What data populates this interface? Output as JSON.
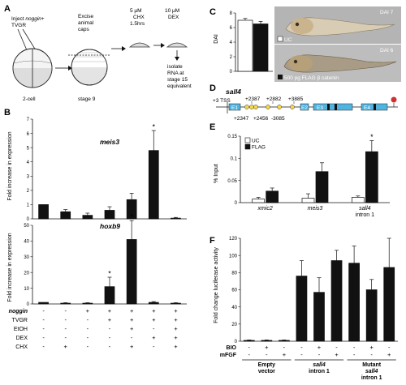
{
  "panels": {
    "A": {
      "letter": "A",
      "inject_line1": "Inject",
      "inject_gene": "noggin",
      "inject_plus": "+",
      "inject_line2": "TVGR",
      "two_cell": "2-cell",
      "excise_1": "Excise",
      "excise_2": "animal",
      "excise_3": "caps",
      "stage9": "stage 9",
      "chx_1": "5 μM",
      "chx_2": "CHX",
      "chx_3": "1.5hrs",
      "dex_1": "10 μM",
      "dex_2": "DEX",
      "iso_1": "isolate",
      "iso_2": "RNA at",
      "iso_3": "stage 15",
      "iso_4": "equivalent"
    },
    "B": {
      "letter": "B",
      "row_labels": [
        "noggin",
        "TVGR",
        "EtOH",
        "DEX",
        "CHX"
      ],
      "row_signs": [
        [
          "-",
          "-",
          "+",
          "+",
          "+",
          "+",
          "+"
        ],
        [
          "-",
          "-",
          "-",
          "+",
          "+",
          "+",
          "+"
        ],
        [
          "-",
          "-",
          "-",
          "-",
          "+",
          "-",
          "+"
        ],
        [
          "-",
          "-",
          "-",
          "-",
          "-",
          "+",
          "+"
        ],
        [
          "-",
          "+",
          "-",
          "-",
          "+",
          "-",
          "+"
        ]
      ]
    },
    "C": {
      "letter": "C",
      "legend_uc": "UC",
      "legend_flag": "500 pg FLAG β catenin",
      "label_dai7": "DAI 7",
      "label_dai6": "DAI 6"
    },
    "D": {
      "letter": "D",
      "gene": "sall4",
      "tss": "+3 TSS",
      "site_top": [
        "+2387",
        "+2882",
        "+3885"
      ],
      "site_bottom": [
        "+2347",
        "+2456",
        "-3085"
      ],
      "exon_labels": [
        "E1",
        "E2",
        "E3",
        "E4"
      ]
    },
    "E": {
      "letter": "E"
    },
    "F": {
      "letter": "F",
      "row_labels": [
        "BIO",
        "mFGF"
      ],
      "row_signs": [
        [
          "-",
          "+",
          "-",
          "-",
          "+",
          "-",
          "-",
          "+",
          "-"
        ],
        [
          "-",
          "-",
          "+",
          "-",
          "-",
          "+",
          "-",
          "-",
          "+"
        ]
      ],
      "groups": [
        {
          "lines": [
            "Empty",
            "vector"
          ],
          "italic": false
        },
        {
          "lines": [
            "sall4",
            "intron 1"
          ],
          "italic": true
        },
        {
          "lines": [
            "Mutant",
            "sall4",
            "intron 1"
          ],
          "italic": true
        }
      ]
    }
  },
  "chart_data": [
    {
      "id": "B-meis3",
      "type": "bar",
      "title": "meis3",
      "ylabel": "Fold increase in expression",
      "ylim": [
        0,
        7
      ],
      "yticks": [
        0,
        1,
        2,
        3,
        4,
        5,
        6,
        7
      ],
      "values": [
        1.0,
        0.5,
        0.25,
        0.6,
        1.35,
        4.8,
        0.05
      ],
      "errors": [
        0.0,
        0.15,
        0.15,
        0.25,
        0.45,
        1.4,
        0.05
      ],
      "significant": [
        false,
        false,
        false,
        false,
        false,
        true,
        false
      ],
      "color": "#111111"
    },
    {
      "id": "B-hoxb9",
      "type": "bar",
      "title": "hoxb9",
      "ylabel": "Fold increase in expression",
      "ylim": [
        0,
        50
      ],
      "yticks": [
        0,
        10,
        20,
        30,
        40,
        50
      ],
      "values": [
        1,
        0.5,
        0.5,
        11,
        41,
        1,
        0.5
      ],
      "errors": [
        0,
        0.3,
        0.3,
        6,
        12,
        0.5,
        0.3
      ],
      "significant": [
        false,
        false,
        false,
        true,
        true,
        false,
        false
      ],
      "color": "#111111"
    },
    {
      "id": "C-DAI",
      "type": "bar",
      "ylabel": "DAI",
      "ylim": [
        0,
        8
      ],
      "yticks": [
        0,
        2,
        4,
        6,
        8
      ],
      "series": [
        {
          "name": "UC",
          "values": [
            7.0
          ],
          "errors": [
            0.25
          ],
          "color": "#ffffff"
        },
        {
          "name": "500 pg FLAG β catenin",
          "values": [
            6.5
          ],
          "errors": [
            0.35
          ],
          "color": "#111111"
        }
      ]
    },
    {
      "id": "E-ChIP",
      "type": "bar",
      "ylabel": "% Input",
      "ylim": [
        0,
        0.15
      ],
      "yticks": [
        0,
        0.05,
        0.1,
        0.15
      ],
      "ytick_labels": [
        "0",
        "0.05",
        "0.1",
        "0.15"
      ],
      "categories": [
        "xmic2",
        "meis3",
        "sall4 intron 1"
      ],
      "series": [
        {
          "name": "UC",
          "values": [
            0.008,
            0.01,
            0.012
          ],
          "errors": [
            0.004,
            0.01,
            0.003
          ],
          "color": "#ffffff"
        },
        {
          "name": "FLAG",
          "values": [
            0.026,
            0.07,
            0.115
          ],
          "errors": [
            0.007,
            0.02,
            0.025
          ],
          "color": "#111111"
        }
      ],
      "significant_category": 2,
      "legend_position": "top-left"
    },
    {
      "id": "F-luciferase",
      "type": "bar",
      "ylabel": "Fold change luciferase activity",
      "ylim": [
        0,
        120
      ],
      "yticks": [
        0,
        20,
        40,
        60,
        80,
        100,
        120
      ],
      "values": [
        1,
        1,
        1,
        76,
        57,
        94,
        91,
        60,
        86
      ],
      "errors": [
        0.5,
        0.5,
        0.5,
        18,
        17,
        12,
        20,
        12,
        34
      ],
      "color": "#111111"
    }
  ]
}
